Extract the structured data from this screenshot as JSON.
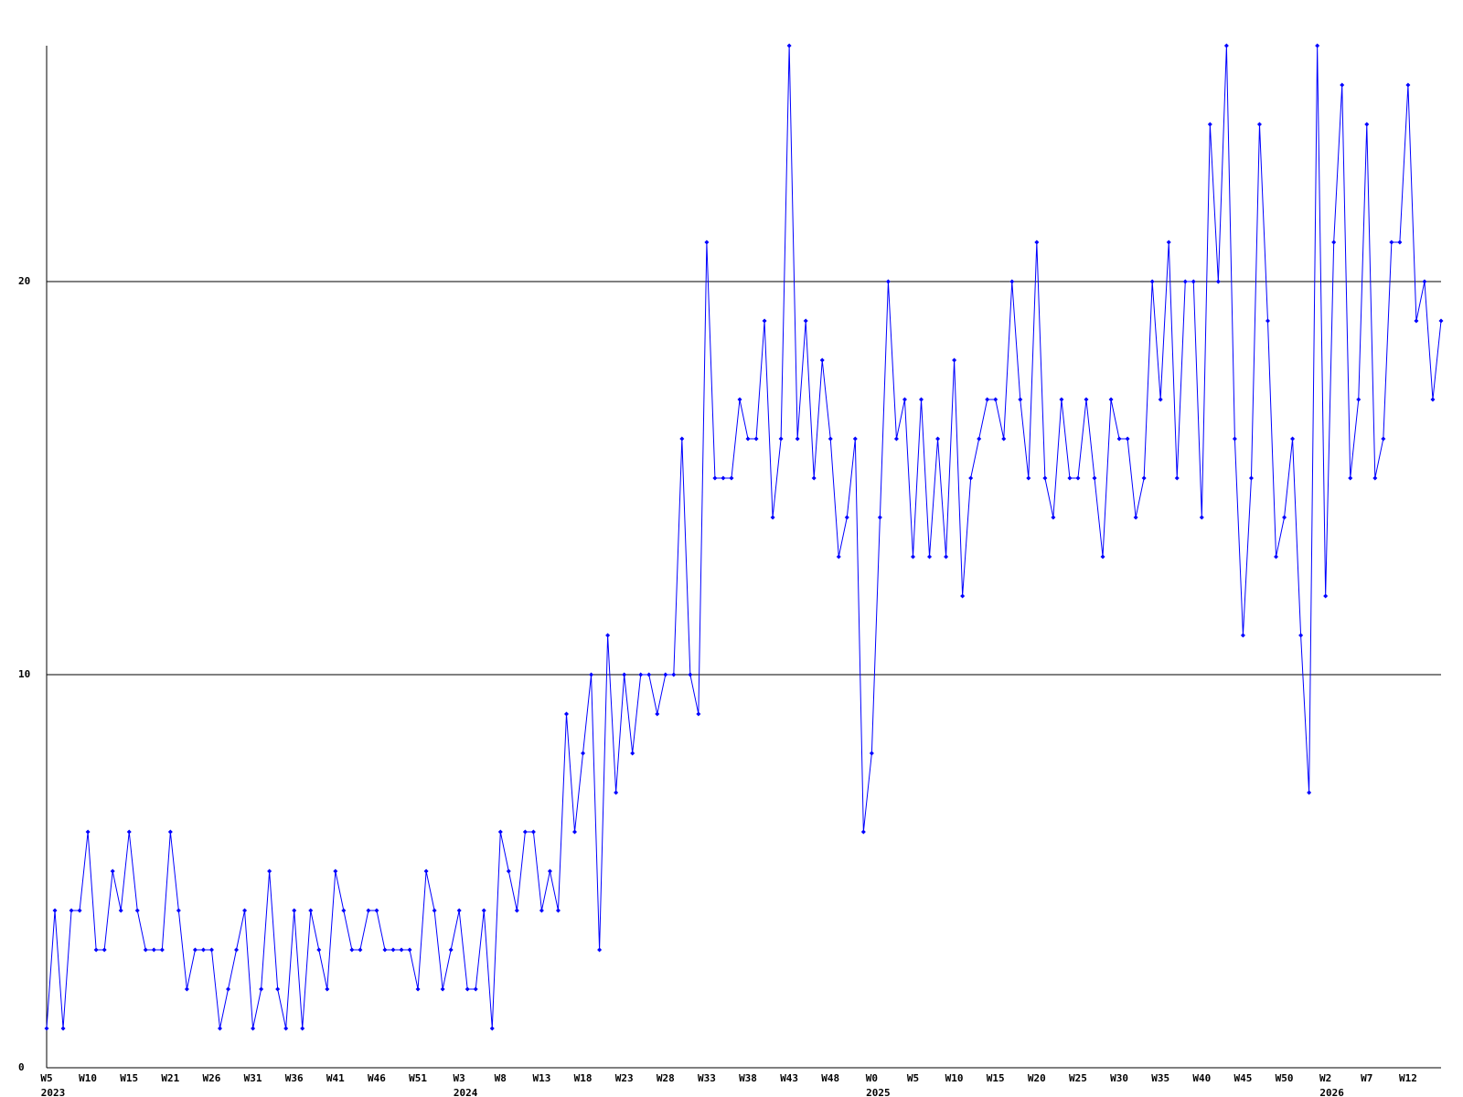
{
  "chart_data": {
    "type": "line",
    "categories": [
      "W5",
      null,
      null,
      null,
      null,
      "W10",
      null,
      null,
      null,
      null,
      "W15",
      null,
      null,
      null,
      null,
      "W21",
      null,
      null,
      null,
      null,
      "W26",
      null,
      null,
      null,
      null,
      "W31",
      null,
      null,
      null,
      null,
      "W36",
      null,
      null,
      null,
      null,
      "W41",
      null,
      null,
      null,
      null,
      "W46",
      null,
      null,
      null,
      null,
      "W51",
      null,
      null,
      null,
      null,
      "W3",
      null,
      null,
      null,
      null,
      "W8",
      null,
      null,
      null,
      null,
      "W13",
      null,
      null,
      null,
      null,
      "W18",
      null,
      null,
      null,
      null,
      "W23",
      null,
      null,
      null,
      null,
      "W28",
      null,
      null,
      null,
      null,
      "W33",
      null,
      null,
      null,
      null,
      "W38",
      null,
      null,
      null,
      null,
      "W43",
      null,
      null,
      null,
      null,
      "W48",
      null,
      null,
      null,
      null,
      "W0",
      null,
      null,
      null,
      null,
      "W5",
      null,
      null,
      null,
      null,
      "W10",
      null,
      null,
      null,
      null,
      "W15",
      null,
      null,
      null,
      null,
      "W20",
      null,
      null,
      null,
      null,
      "W25",
      null,
      null,
      null,
      null,
      "W30",
      null,
      null,
      null,
      null,
      "W35",
      null,
      null,
      null,
      null,
      "W40",
      null,
      null,
      null,
      null,
      "W45",
      null,
      null,
      null,
      null,
      "W50",
      null,
      null,
      null,
      null,
      "W2",
      null,
      null,
      null,
      null,
      "W7",
      null,
      null,
      null,
      null,
      "W12",
      null,
      null,
      null,
      null
    ],
    "years": [
      "2023",
      null,
      null,
      null,
      null,
      null,
      null,
      null,
      null,
      null,
      null,
      null,
      null,
      null,
      null,
      null,
      null,
      null,
      null,
      null,
      null,
      null,
      null,
      null,
      null,
      null,
      null,
      null,
      null,
      null,
      null,
      null,
      null,
      null,
      null,
      null,
      null,
      null,
      null,
      null,
      null,
      null,
      null,
      null,
      null,
      null,
      null,
      null,
      null,
      null,
      "2024",
      null,
      null,
      null,
      null,
      null,
      null,
      null,
      null,
      null,
      null,
      null,
      null,
      null,
      null,
      null,
      null,
      null,
      null,
      null,
      null,
      null,
      null,
      null,
      null,
      null,
      null,
      null,
      null,
      null,
      null,
      null,
      null,
      null,
      null,
      null,
      null,
      null,
      null,
      null,
      null,
      null,
      null,
      null,
      null,
      null,
      null,
      null,
      null,
      null,
      "2025",
      null,
      null,
      null,
      null,
      null,
      null,
      null,
      null,
      null,
      null,
      null,
      null,
      null,
      null,
      null,
      null,
      null,
      null,
      null,
      null,
      null,
      null,
      null,
      null,
      null,
      null,
      null,
      null,
      null,
      null,
      null,
      null,
      null,
      null,
      null,
      null,
      null,
      null,
      null,
      null,
      null,
      null,
      null,
      null,
      null,
      null,
      null,
      null,
      null,
      null,
      null,
      null,
      null,
      null,
      "2026",
      null,
      null,
      null,
      null,
      null,
      null,
      null,
      null,
      null,
      null,
      null,
      null,
      null,
      null
    ],
    "values": [
      1,
      4,
      1,
      4,
      4,
      6,
      3,
      3,
      5,
      4,
      6,
      4,
      3,
      3,
      3,
      6,
      4,
      2,
      3,
      3,
      3,
      1,
      2,
      3,
      4,
      1,
      2,
      5,
      2,
      1,
      4,
      1,
      4,
      3,
      2,
      5,
      4,
      3,
      3,
      4,
      4,
      3,
      3,
      3,
      3,
      2,
      5,
      4,
      2,
      3,
      4,
      2,
      2,
      4,
      1,
      6,
      5,
      4,
      6,
      6,
      4,
      5,
      4,
      9,
      6,
      8,
      10,
      3,
      11,
      7,
      10,
      8,
      10,
      10,
      9,
      10,
      10,
      16,
      10,
      9,
      21,
      15,
      15,
      15,
      17,
      16,
      16,
      19,
      14,
      16,
      26,
      16,
      19,
      15,
      18,
      16,
      13,
      14,
      16,
      6,
      8,
      14,
      20,
      16,
      17,
      13,
      17,
      13,
      16,
      13,
      18,
      12,
      15,
      16,
      17,
      17,
      16,
      20,
      17,
      15,
      21,
      15,
      14,
      17,
      15,
      15,
      17,
      15,
      13,
      17,
      16,
      16,
      14,
      15,
      20,
      17,
      21,
      15,
      20,
      20,
      14,
      24,
      20,
      26,
      16,
      11,
      15,
      24,
      19,
      13,
      14,
      16,
      11,
      7,
      26,
      12,
      21,
      25,
      15,
      17,
      24,
      15,
      16,
      21,
      21,
      25,
      19,
      20,
      17,
      19
    ],
    "color": "#0000ff",
    "ylim": [
      0,
      26
    ],
    "yticks": [
      0,
      10,
      20
    ],
    "grid": true
  }
}
